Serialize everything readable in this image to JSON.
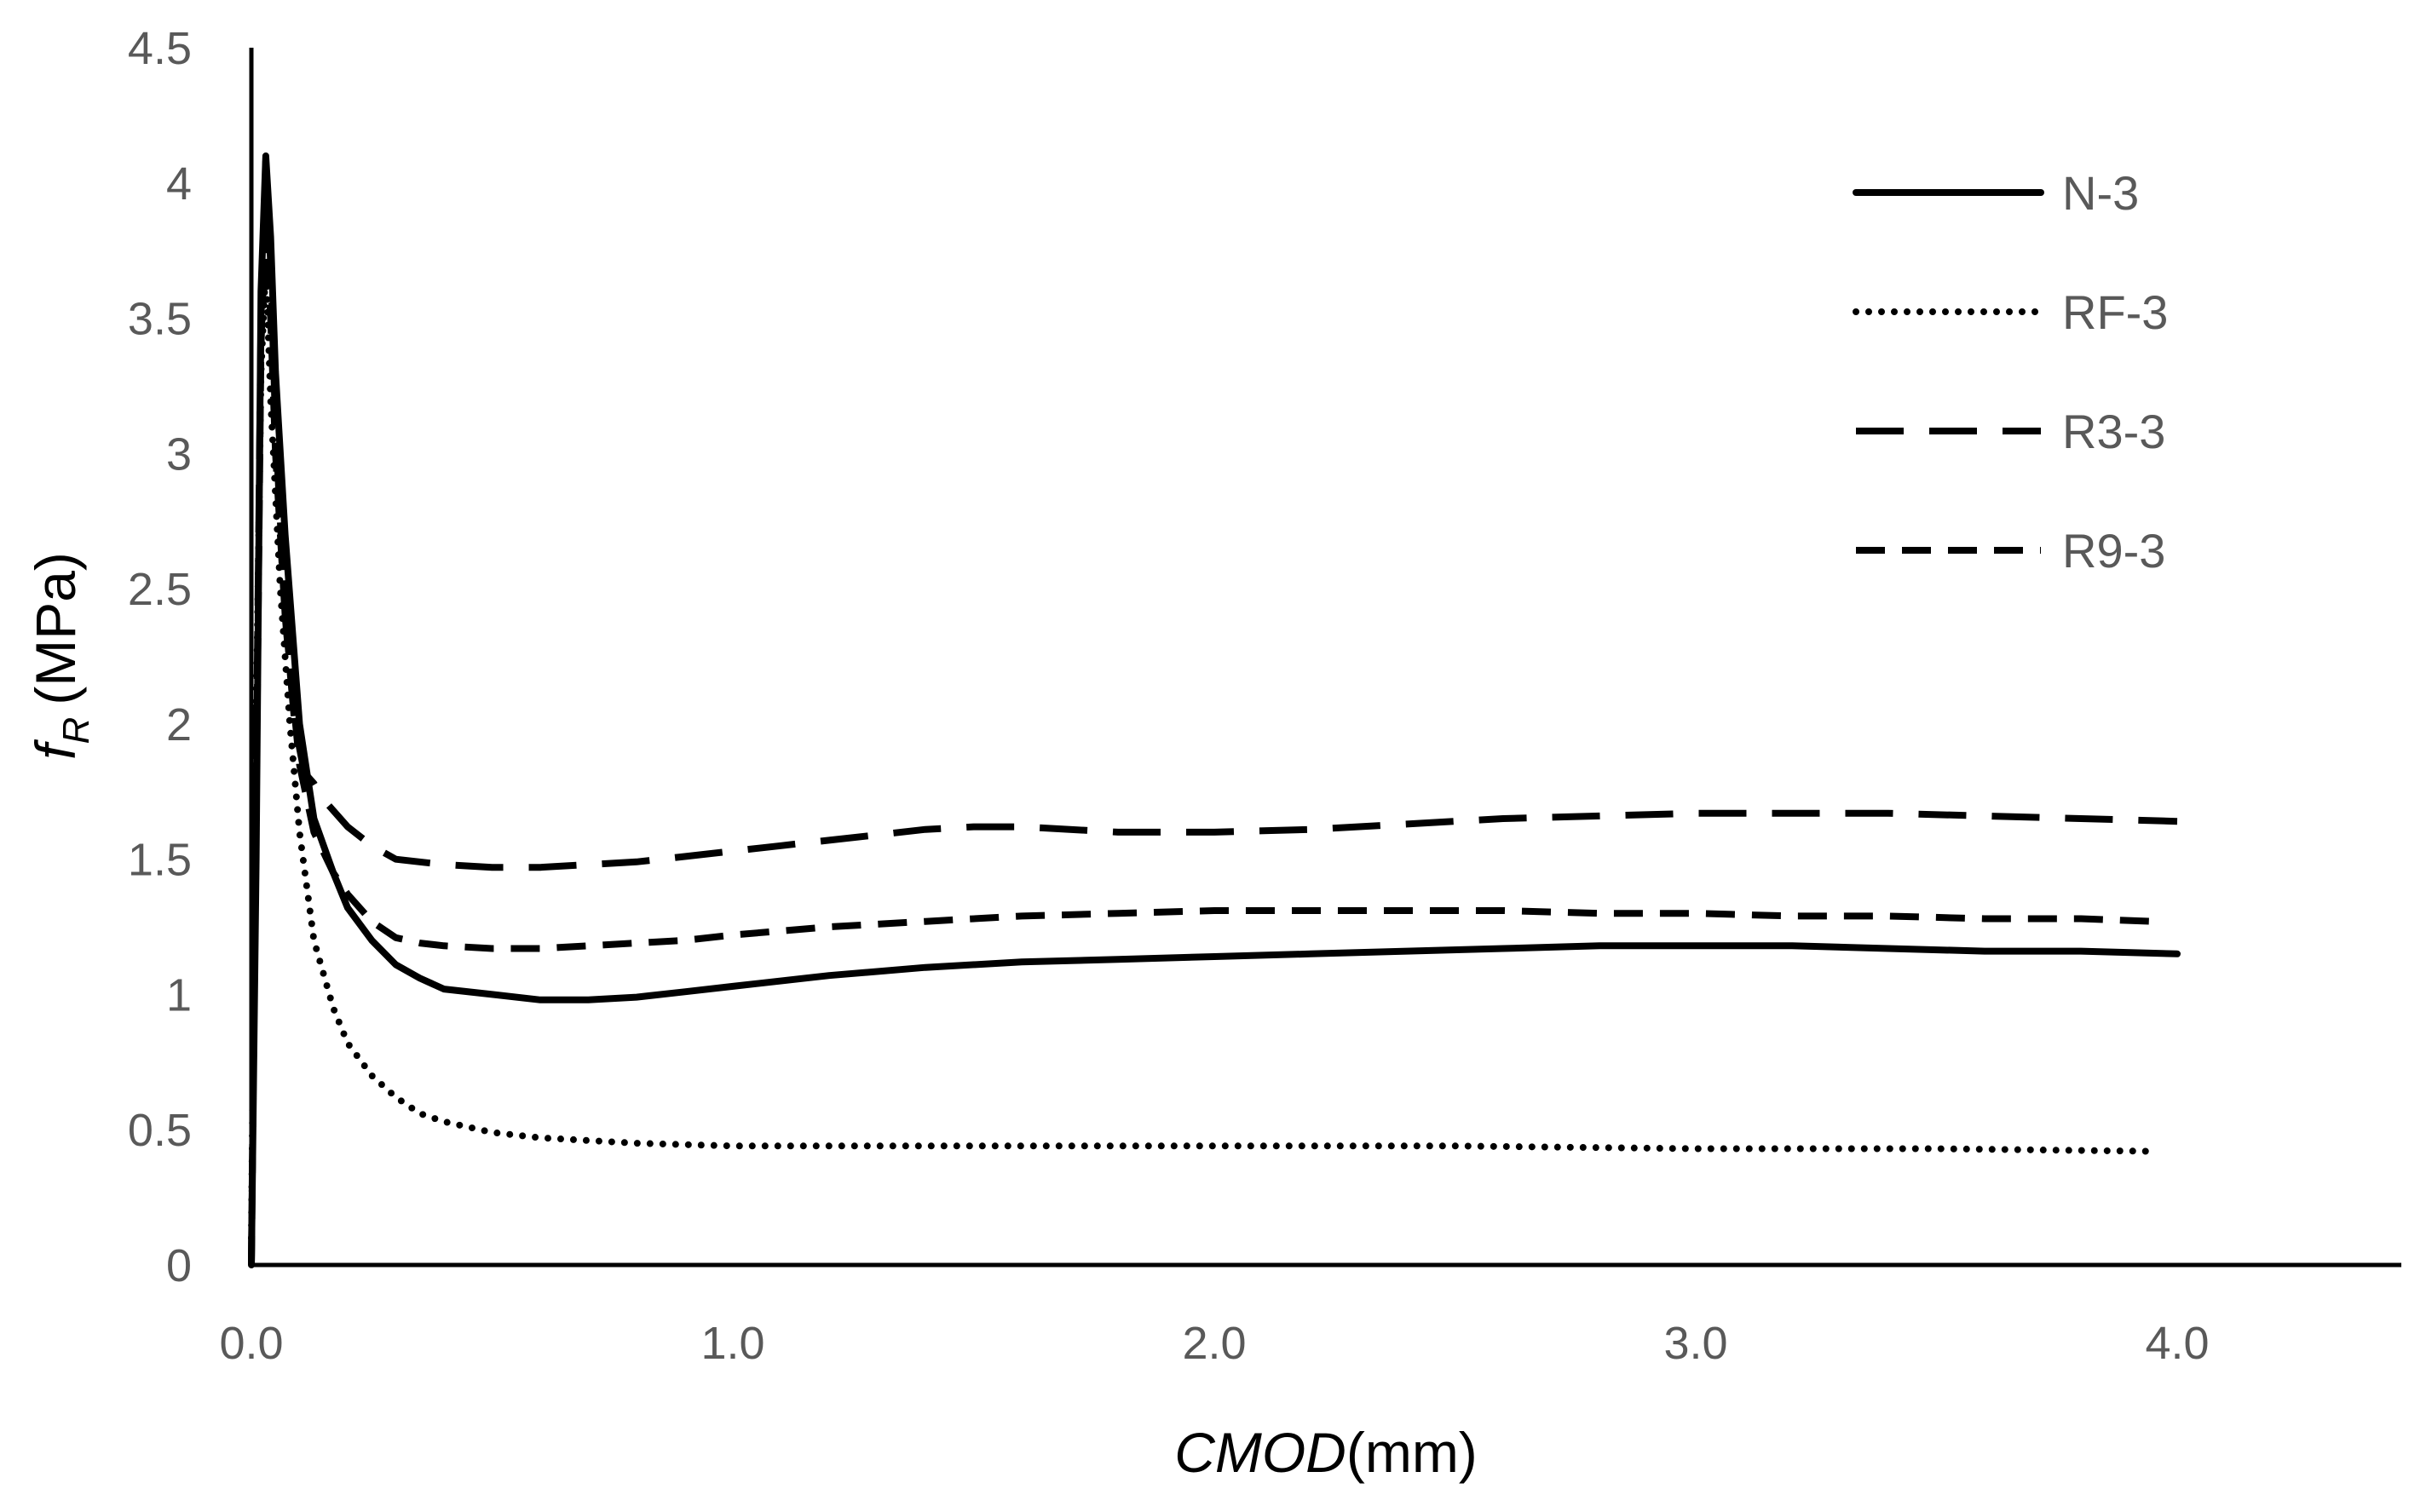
{
  "chart_data": {
    "type": "line",
    "title": "",
    "xlabel": "CMOD(mm)",
    "xlabel_parts": {
      "italic": "CMOD",
      "plain": "(mm)"
    },
    "ylabel": "fR (MPa)",
    "ylabel_parts": {
      "symbol": "f",
      "subscript": "R",
      "unit": "(MPa)"
    },
    "xlim": [
      0,
      4.5
    ],
    "ylim": [
      0,
      4.5
    ],
    "x_ticks": [
      0,
      1,
      2,
      3,
      4
    ],
    "x_tick_labels": [
      "0.0",
      "1.0",
      "2.0",
      "3.0",
      "4.0"
    ],
    "y_ticks": [
      0,
      0.5,
      1,
      1.5,
      2,
      2.5,
      3,
      3.5,
      4,
      4.5
    ],
    "y_tick_labels": [
      "0",
      "0.5",
      "1",
      "1.5",
      "2",
      "2.5",
      "3",
      "3.5",
      "4",
      "4.5"
    ],
    "grid": false,
    "legend_position": "top-right",
    "series": [
      {
        "name": "N-3",
        "style": "solid",
        "color": "#000000",
        "points": [
          [
            0,
            0
          ],
          [
            0.01,
            1.5
          ],
          [
            0.02,
            3.6
          ],
          [
            0.03,
            4.1
          ],
          [
            0.04,
            3.8
          ],
          [
            0.05,
            3.3
          ],
          [
            0.07,
            2.7
          ],
          [
            0.1,
            2.0
          ],
          [
            0.13,
            1.65
          ],
          [
            0.17,
            1.45
          ],
          [
            0.2,
            1.32
          ],
          [
            0.25,
            1.2
          ],
          [
            0.3,
            1.11
          ],
          [
            0.35,
            1.06
          ],
          [
            0.4,
            1.02
          ],
          [
            0.5,
            1.0
          ],
          [
            0.6,
            0.98
          ],
          [
            0.7,
            0.98
          ],
          [
            0.8,
            0.99
          ],
          [
            0.9,
            1.01
          ],
          [
            1.0,
            1.03
          ],
          [
            1.2,
            1.07
          ],
          [
            1.4,
            1.1
          ],
          [
            1.6,
            1.12
          ],
          [
            1.8,
            1.13
          ],
          [
            2.0,
            1.14
          ],
          [
            2.2,
            1.15
          ],
          [
            2.4,
            1.16
          ],
          [
            2.6,
            1.17
          ],
          [
            2.8,
            1.18
          ],
          [
            3.0,
            1.18
          ],
          [
            3.2,
            1.18
          ],
          [
            3.4,
            1.17
          ],
          [
            3.6,
            1.16
          ],
          [
            3.8,
            1.16
          ],
          [
            4.0,
            1.15
          ]
        ]
      },
      {
        "name": "RF-3",
        "style": "dotted",
        "color": "#000000",
        "points": [
          [
            0,
            0.1
          ],
          [
            0.01,
            2.0
          ],
          [
            0.02,
            3.3
          ],
          [
            0.03,
            3.7
          ],
          [
            0.04,
            3.2
          ],
          [
            0.06,
            2.5
          ],
          [
            0.08,
            2.0
          ],
          [
            0.1,
            1.6
          ],
          [
            0.13,
            1.2
          ],
          [
            0.17,
            0.95
          ],
          [
            0.2,
            0.82
          ],
          [
            0.25,
            0.7
          ],
          [
            0.3,
            0.62
          ],
          [
            0.35,
            0.56
          ],
          [
            0.4,
            0.53
          ],
          [
            0.5,
            0.49
          ],
          [
            0.6,
            0.47
          ],
          [
            0.8,
            0.45
          ],
          [
            1.0,
            0.44
          ],
          [
            1.5,
            0.44
          ],
          [
            2.0,
            0.44
          ],
          [
            2.5,
            0.44
          ],
          [
            3.0,
            0.43
          ],
          [
            3.5,
            0.43
          ],
          [
            3.95,
            0.42
          ]
        ]
      },
      {
        "name": "R3-3",
        "style": "long-dash",
        "color": "#000000",
        "points": [
          [
            0,
            0
          ],
          [
            0.01,
            1.8
          ],
          [
            0.02,
            3.5
          ],
          [
            0.03,
            4.08
          ],
          [
            0.04,
            3.7
          ],
          [
            0.05,
            3.1
          ],
          [
            0.07,
            2.4
          ],
          [
            0.09,
            2.0
          ],
          [
            0.11,
            1.82
          ],
          [
            0.13,
            1.78
          ],
          [
            0.15,
            1.72
          ],
          [
            0.2,
            1.62
          ],
          [
            0.25,
            1.55
          ],
          [
            0.3,
            1.5
          ],
          [
            0.4,
            1.48
          ],
          [
            0.5,
            1.47
          ],
          [
            0.6,
            1.47
          ],
          [
            0.7,
            1.48
          ],
          [
            0.8,
            1.49
          ],
          [
            0.9,
            1.51
          ],
          [
            1.0,
            1.53
          ],
          [
            1.1,
            1.55
          ],
          [
            1.2,
            1.57
          ],
          [
            1.3,
            1.59
          ],
          [
            1.4,
            1.61
          ],
          [
            1.5,
            1.62
          ],
          [
            1.6,
            1.62
          ],
          [
            1.7,
            1.61
          ],
          [
            1.8,
            1.6
          ],
          [
            1.9,
            1.6
          ],
          [
            2.0,
            1.6
          ],
          [
            2.2,
            1.61
          ],
          [
            2.4,
            1.63
          ],
          [
            2.6,
            1.65
          ],
          [
            2.8,
            1.66
          ],
          [
            3.0,
            1.67
          ],
          [
            3.2,
            1.67
          ],
          [
            3.4,
            1.67
          ],
          [
            3.6,
            1.66
          ],
          [
            3.8,
            1.65
          ],
          [
            4.0,
            1.64
          ]
        ]
      },
      {
        "name": "R9-3",
        "style": "dash",
        "color": "#000000",
        "points": [
          [
            0,
            0
          ],
          [
            0.01,
            1.7
          ],
          [
            0.02,
            3.4
          ],
          [
            0.03,
            3.9
          ],
          [
            0.04,
            3.5
          ],
          [
            0.05,
            3.0
          ],
          [
            0.07,
            2.4
          ],
          [
            0.1,
            1.85
          ],
          [
            0.13,
            1.6
          ],
          [
            0.17,
            1.45
          ],
          [
            0.2,
            1.37
          ],
          [
            0.25,
            1.27
          ],
          [
            0.3,
            1.21
          ],
          [
            0.35,
            1.19
          ],
          [
            0.4,
            1.18
          ],
          [
            0.5,
            1.17
          ],
          [
            0.6,
            1.17
          ],
          [
            0.7,
            1.18
          ],
          [
            0.8,
            1.19
          ],
          [
            0.9,
            1.2
          ],
          [
            1.0,
            1.22
          ],
          [
            1.2,
            1.25
          ],
          [
            1.4,
            1.27
          ],
          [
            1.6,
            1.29
          ],
          [
            1.8,
            1.3
          ],
          [
            2.0,
            1.31
          ],
          [
            2.2,
            1.31
          ],
          [
            2.4,
            1.31
          ],
          [
            2.6,
            1.31
          ],
          [
            2.8,
            1.3
          ],
          [
            3.0,
            1.3
          ],
          [
            3.2,
            1.29
          ],
          [
            3.4,
            1.29
          ],
          [
            3.6,
            1.28
          ],
          [
            3.8,
            1.28
          ],
          [
            3.95,
            1.27
          ]
        ]
      }
    ]
  }
}
